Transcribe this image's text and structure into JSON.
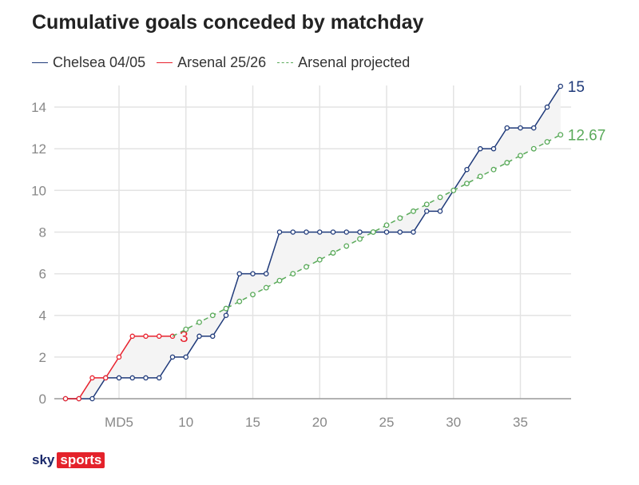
{
  "chart_data": {
    "type": "line",
    "title": "Cumulative goals conceded by matchday",
    "xlabel": "",
    "ylabel": "",
    "xlim": [
      0,
      38.8
    ],
    "ylim": [
      0,
      15
    ],
    "x_ticks": [
      {
        "v": 5,
        "label": "MD5"
      },
      {
        "v": 10,
        "label": "10"
      },
      {
        "v": 15,
        "label": "15"
      },
      {
        "v": 20,
        "label": "20"
      },
      {
        "v": 25,
        "label": "25"
      },
      {
        "v": 30,
        "label": "30"
      },
      {
        "v": 35,
        "label": "35"
      }
    ],
    "y_ticks": [
      0,
      2,
      4,
      6,
      8,
      10,
      12,
      14
    ],
    "grid": true,
    "legend_placement": "top-left",
    "series": [
      {
        "name": "Chelsea 04/05",
        "color": "#1f3a7a",
        "style": "solid",
        "end_label": "15",
        "x": [
          1,
          2,
          3,
          4,
          5,
          6,
          7,
          8,
          9,
          10,
          11,
          12,
          13,
          14,
          15,
          16,
          17,
          18,
          19,
          20,
          21,
          22,
          23,
          24,
          25,
          26,
          27,
          28,
          29,
          30,
          31,
          32,
          33,
          34,
          35,
          36,
          37,
          38
        ],
        "values": [
          0,
          0,
          0,
          1,
          1,
          1,
          1,
          1,
          2,
          2,
          3,
          3,
          4,
          6,
          6,
          6,
          8,
          8,
          8,
          8,
          8,
          8,
          8,
          8,
          8,
          8,
          8,
          9,
          9,
          10,
          11,
          12,
          12,
          13,
          13,
          13,
          14,
          15
        ]
      },
      {
        "name": "Arsenal 25/26",
        "color": "#e8222e",
        "style": "solid",
        "end_label": "3",
        "x": [
          1,
          2,
          3,
          4,
          5,
          6,
          7,
          8,
          9
        ],
        "values": [
          0,
          0,
          1,
          1,
          2,
          3,
          3,
          3,
          3
        ]
      },
      {
        "name": "Arsenal projected",
        "color": "#5aaa5a",
        "style": "dashed",
        "end_label": "12.67",
        "x": [
          9,
          10,
          11,
          12,
          13,
          14,
          15,
          16,
          17,
          18,
          19,
          20,
          21,
          22,
          23,
          24,
          25,
          26,
          27,
          28,
          29,
          30,
          31,
          32,
          33,
          34,
          35,
          36,
          37,
          38
        ],
        "values": [
          3,
          3.33,
          3.67,
          4,
          4.33,
          4.67,
          5,
          5.33,
          5.67,
          6,
          6.33,
          6.67,
          7,
          7.33,
          7.67,
          8,
          8.33,
          8.67,
          9,
          9.33,
          9.67,
          10,
          10.33,
          10.67,
          11,
          11.33,
          11.67,
          12,
          12.33,
          12.67
        ]
      }
    ]
  },
  "brand": {
    "sky": "sky",
    "sports": "sports"
  }
}
